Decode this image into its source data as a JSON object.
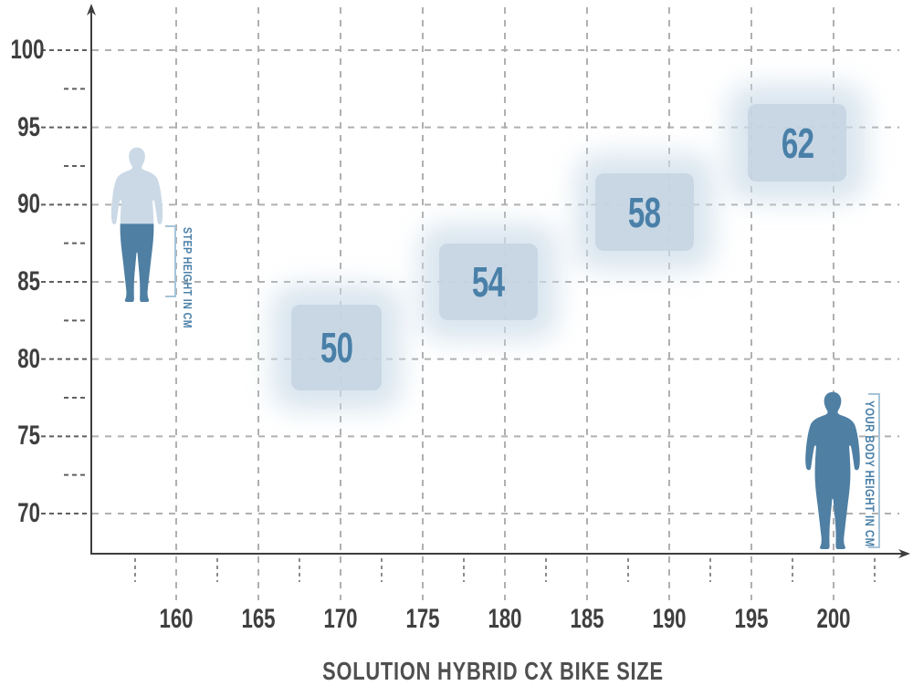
{
  "chart_data": {
    "type": "scatter",
    "title": "SOLUTION HYBRID CX BIKE SIZE",
    "xlabel": "YOUR BODY HEIGHT IN CM",
    "ylabel": "STEP HEIGHT IN CM",
    "xlim": [
      155,
      204
    ],
    "ylim": [
      65,
      102.5
    ],
    "grid": true,
    "x_ticks_major": [
      160,
      165,
      170,
      175,
      180,
      185,
      190,
      195,
      200
    ],
    "x_ticks_minor": [
      157.5,
      162.5,
      167.5,
      172.5,
      177.5,
      182.5,
      187.5,
      192.5,
      197.5,
      202.5
    ],
    "y_ticks_major": [
      100,
      95,
      90,
      85,
      80,
      75,
      70
    ],
    "y_ticks_minor": [
      97.5,
      92.5,
      87.5,
      82.5,
      77.5,
      72.5
    ],
    "regions": [
      {
        "size": "50",
        "body_height_cm": [
          167,
          172.5
        ],
        "step_height_cm": [
          78,
          83.5
        ]
      },
      {
        "size": "54",
        "body_height_cm": [
          176,
          182
        ],
        "step_height_cm": [
          82.5,
          87.5
        ]
      },
      {
        "size": "58",
        "body_height_cm": [
          185.5,
          191.5
        ],
        "step_height_cm": [
          87,
          92
        ]
      },
      {
        "size": "62",
        "body_height_cm": [
          194.8,
          200.8
        ],
        "step_height_cm": [
          91.5,
          96.5
        ]
      }
    ]
  },
  "colors": {
    "accent_blue": "#4a80a8",
    "region_fill": "#c6d5e4",
    "region_glow": "#cdddea",
    "silhouette_light": "#cbd9e6",
    "silhouette_dark": "#4f7fa3",
    "bracket": "#a6c4d8",
    "grid_light": "#b0b0b0",
    "grid_mid": "#8c8c8c",
    "grid_dark": "#5f5f5f",
    "axis": "#3e3e3e",
    "tick_label": "#3f3f3f",
    "title": "#4f4f4f"
  }
}
